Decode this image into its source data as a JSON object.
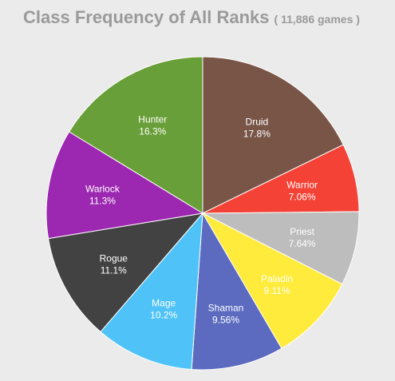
{
  "chart_data": {
    "type": "pie",
    "title": "Class Frequency of All Ranks",
    "subtitle": "( 11,886 games )",
    "slices": [
      {
        "name": "Druid",
        "value": 17.8,
        "label": "17.8%",
        "color": "#795548"
      },
      {
        "name": "Warrior",
        "value": 7.06,
        "label": "7.06%",
        "color": "#f44336"
      },
      {
        "name": "Priest",
        "value": 7.64,
        "label": "7.64%",
        "color": "#bdbdbd"
      },
      {
        "name": "Paladin",
        "value": 9.11,
        "label": "9.11%",
        "color": "#ffeb3b"
      },
      {
        "name": "Shaman",
        "value": 9.56,
        "label": "9.56%",
        "color": "#5c6bc0"
      },
      {
        "name": "Mage",
        "value": 10.2,
        "label": "10.2%",
        "color": "#4fc3f7"
      },
      {
        "name": "Rogue",
        "value": 11.1,
        "label": "11.1%",
        "color": "#424242"
      },
      {
        "name": "Warlock",
        "value": 11.3,
        "label": "11.3%",
        "color": "#9c27b0"
      },
      {
        "name": "Hunter",
        "value": 16.3,
        "label": "16.3%",
        "color": "#689f38"
      }
    ],
    "start_angle": "12 o'clock",
    "direction": "clockwise",
    "legend": "none"
  }
}
